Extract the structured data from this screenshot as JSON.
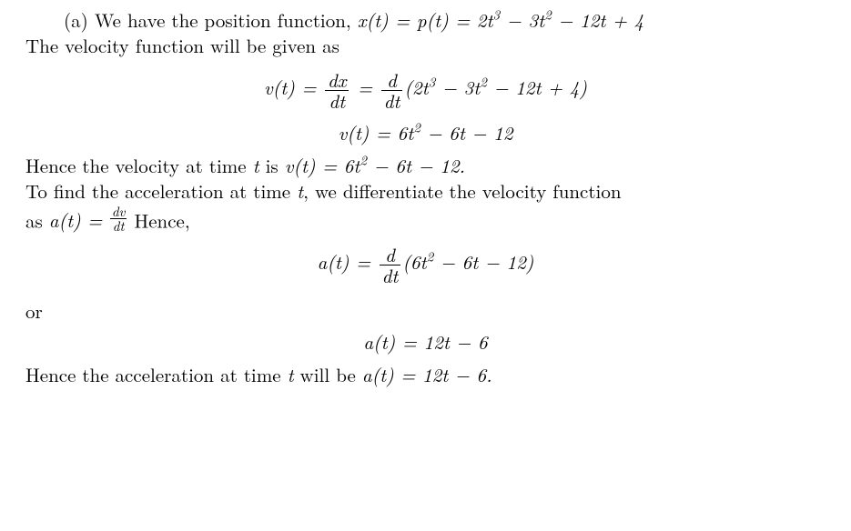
{
  "colors": {
    "text": "#000000",
    "background": "#ffffff"
  },
  "typography": {
    "family": "Computer Modern / Times",
    "body_size_pt": 16,
    "math_italic": true
  },
  "p1a": "(a) We have the position function, ",
  "p1b_math": "x(t) = p(t) = 2t",
  "p1b_sup1": "3",
  "p1b_mid1": " − 3t",
  "p1b_sup2": "2",
  "p1b_tail": " − 12t + 4",
  "p2": "The velocity function will be given as",
  "eq1": {
    "lhs": "v(t) = ",
    "frac1_num": "dx",
    "frac1_den": "dt",
    "eq_sign": " = ",
    "frac2_num": "d",
    "frac2_den": "dt",
    "poly_a": "(2t",
    "poly_s1": "3",
    "poly_b": " − 3t",
    "poly_s2": "2",
    "poly_c": " − 12t + 4)"
  },
  "eq2": {
    "lhs": "v(t) = 6t",
    "s1": "2",
    "tail": " − 6t − 12"
  },
  "p3a": "Hence the velocity at time ",
  "p3b": "t",
  "p3c": " is ",
  "p3d": "v(t) = 6t",
  "p3d_s": "2",
  "p3e": " − 6t − 12.",
  "p4a": "To find the acceleration at time ",
  "p4b": "t",
  "p4c": ", we differentiate the velocity function",
  "p5a": "as ",
  "p5b": "a(t) = ",
  "p5_sfrac_num": "dv",
  "p5_sfrac_den": "dt",
  "p5c": " Hence,",
  "eq3": {
    "lhs": "a(t) = ",
    "frac_num": "d",
    "frac_den": "dt",
    "poly_a": "(6t",
    "poly_s1": "2",
    "poly_b": " − 6t − 12)"
  },
  "or": "or",
  "eq4": "a(t) = 12t − 6",
  "p6a": "Hence the acceleration at time ",
  "p6b": "t",
  "p6c": " will be ",
  "p6d": "a(t) = 12t − 6."
}
